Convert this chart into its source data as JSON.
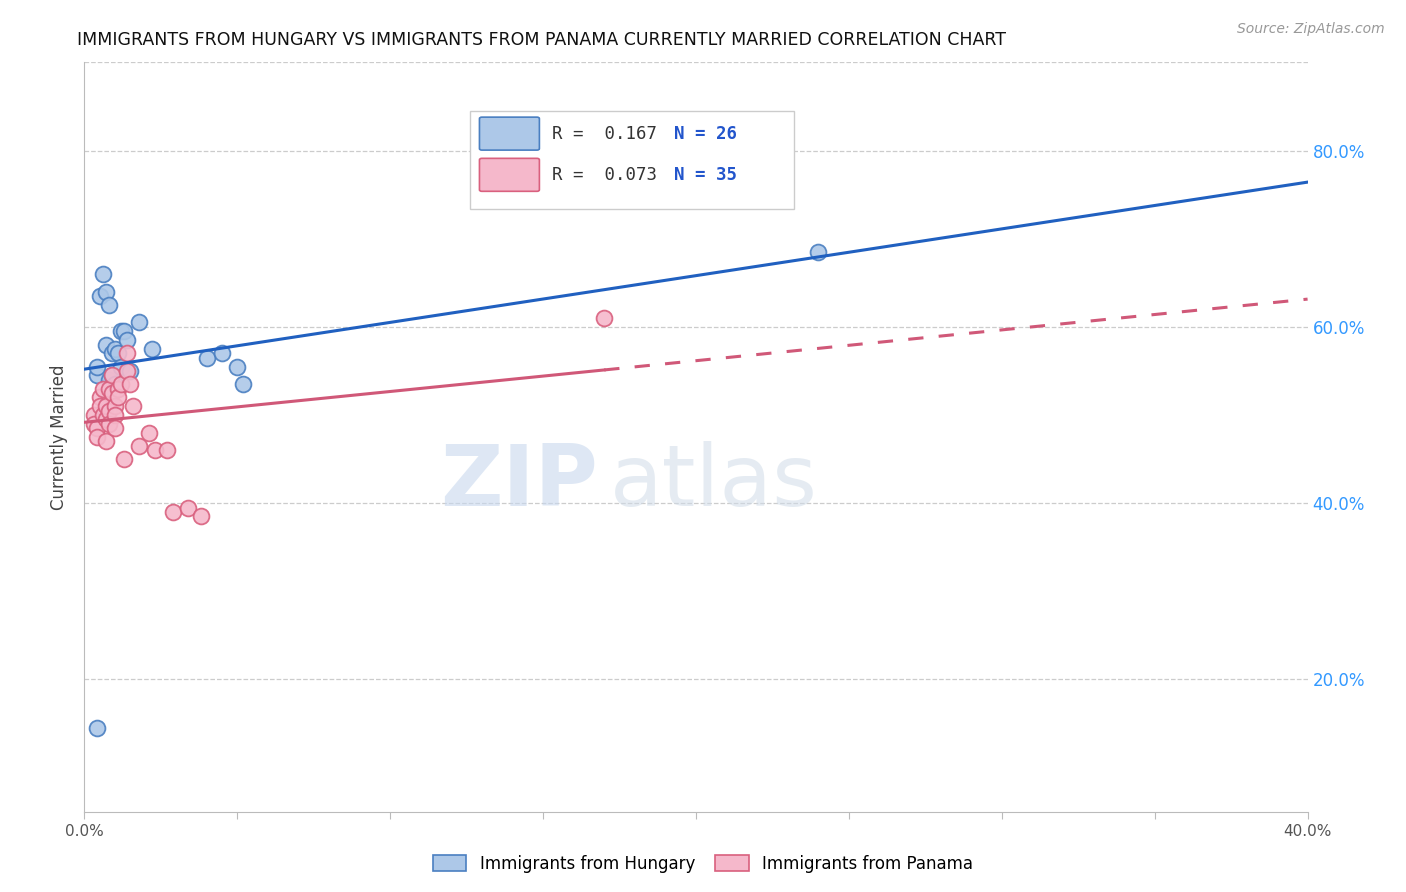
{
  "title": "IMMIGRANTS FROM HUNGARY VS IMMIGRANTS FROM PANAMA CURRENTLY MARRIED CORRELATION CHART",
  "source": "Source: ZipAtlas.com",
  "ylabel": "Currently Married",
  "xlim": [
    0.0,
    0.4
  ],
  "ylim": [
    0.05,
    0.9
  ],
  "yticks": [
    0.2,
    0.4,
    0.6,
    0.8
  ],
  "ytick_labels": [
    "20.0%",
    "40.0%",
    "60.0%",
    "80.0%"
  ],
  "xticks": [
    0.0,
    0.05,
    0.1,
    0.15,
    0.2,
    0.25,
    0.3,
    0.35,
    0.4
  ],
  "xtick_labels": [
    "0.0%",
    "",
    "",
    "",
    "",
    "",
    "",
    "",
    "40.0%"
  ],
  "hungary_color": "#adc8e8",
  "hungary_edge_color": "#4a7fc1",
  "panama_color": "#f5b8cb",
  "panama_edge_color": "#d9607e",
  "trend_hungary_color": "#2060c0",
  "trend_panama_color": "#d05878",
  "legend_R_hungary": "R =  0.167",
  "legend_N_hungary": "N = 26",
  "legend_R_panama": "R =  0.073",
  "legend_N_panama": "N = 35",
  "hungary_x": [
    0.004,
    0.004,
    0.005,
    0.006,
    0.007,
    0.007,
    0.008,
    0.008,
    0.009,
    0.009,
    0.01,
    0.01,
    0.011,
    0.012,
    0.012,
    0.013,
    0.014,
    0.015,
    0.018,
    0.022,
    0.04,
    0.045,
    0.05,
    0.052,
    0.24,
    0.004
  ],
  "hungary_y": [
    0.545,
    0.555,
    0.635,
    0.66,
    0.58,
    0.64,
    0.625,
    0.54,
    0.545,
    0.57,
    0.575,
    0.535,
    0.57,
    0.595,
    0.555,
    0.595,
    0.585,
    0.55,
    0.605,
    0.575,
    0.565,
    0.57,
    0.555,
    0.535,
    0.685,
    0.145
  ],
  "panama_x": [
    0.003,
    0.003,
    0.004,
    0.004,
    0.005,
    0.005,
    0.006,
    0.006,
    0.007,
    0.007,
    0.007,
    0.008,
    0.008,
    0.008,
    0.009,
    0.009,
    0.01,
    0.01,
    0.01,
    0.011,
    0.011,
    0.012,
    0.013,
    0.014,
    0.014,
    0.015,
    0.016,
    0.018,
    0.021,
    0.023,
    0.027,
    0.029,
    0.034,
    0.038,
    0.17
  ],
  "panama_y": [
    0.5,
    0.49,
    0.485,
    0.475,
    0.52,
    0.51,
    0.53,
    0.5,
    0.495,
    0.47,
    0.51,
    0.505,
    0.49,
    0.53,
    0.525,
    0.545,
    0.51,
    0.5,
    0.485,
    0.53,
    0.52,
    0.535,
    0.45,
    0.57,
    0.55,
    0.535,
    0.51,
    0.465,
    0.48,
    0.46,
    0.46,
    0.39,
    0.395,
    0.385,
    0.61
  ],
  "watermark_zip": "ZIP",
  "watermark_atlas": "atlas",
  "background_color": "#ffffff",
  "grid_color": "#cccccc",
  "right_axis_color": "#3399ff"
}
